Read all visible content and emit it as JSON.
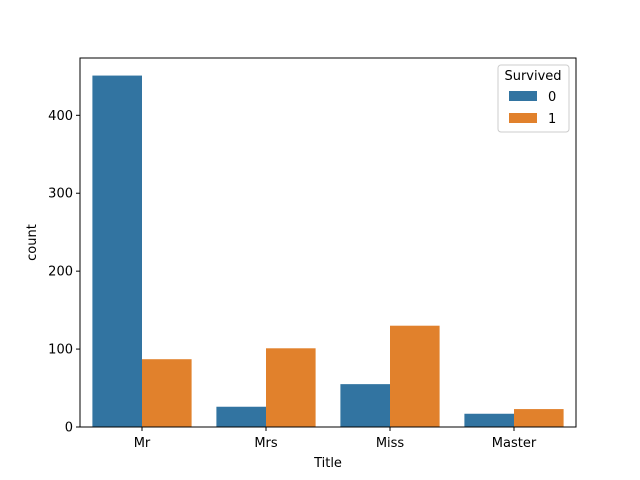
{
  "chart_data": {
    "type": "bar",
    "categories": [
      "Mr",
      "Mrs",
      "Miss",
      "Master"
    ],
    "series": [
      {
        "name": "0",
        "values": [
          451,
          26,
          55,
          17
        ],
        "color": "#3274a1"
      },
      {
        "name": "1",
        "values": [
          87,
          101,
          130,
          23
        ],
        "color": "#e1812c"
      }
    ],
    "title": "",
    "xlabel": "Title",
    "ylabel": "count",
    "ylim": [
      0,
      473.55
    ],
    "yticks": [
      0,
      100,
      200,
      300,
      400
    ],
    "grid": false,
    "legend": {
      "title": "Survived",
      "placement": "upper right"
    }
  }
}
